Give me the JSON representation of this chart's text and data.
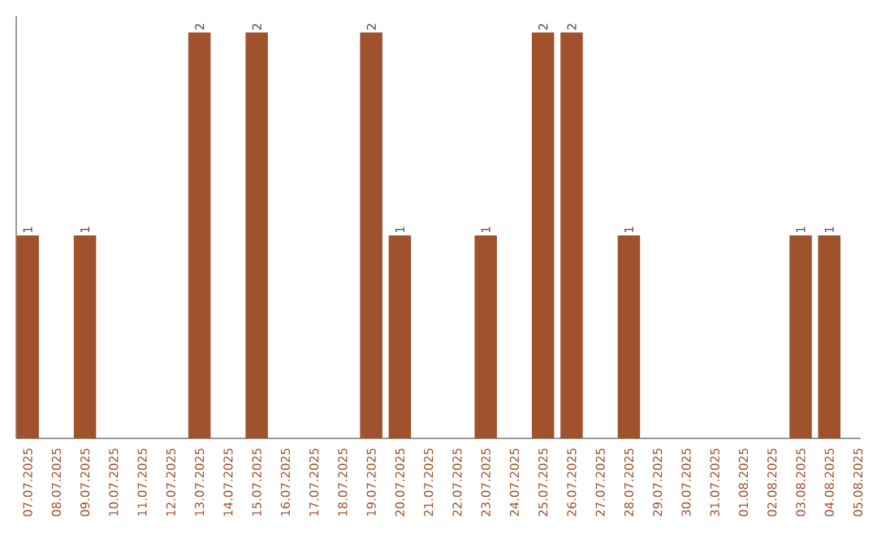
{
  "chart_data": {
    "type": "bar",
    "categories": [
      "07.07.2025",
      "08.07.2025",
      "09.07.2025",
      "10.07.2025",
      "11.07.2025",
      "12.07.2025",
      "13.07.2025",
      "14.07.2025",
      "15.07.2025",
      "16.07.2025",
      "17.07.2025",
      "18.07.2025",
      "19.07.2025",
      "20.07.2025",
      "21.07.2025",
      "22.07.2025",
      "23.07.2025",
      "24.07.2025",
      "25.07.2025",
      "26.07.2025",
      "27.07.2025",
      "28.07.2025",
      "29.07.2025",
      "30.07.2025",
      "31.07.2025",
      "01.08.2025",
      "02.08.2025",
      "03.08.2025",
      "04.08.2025",
      "05.08.2025"
    ],
    "values": [
      1,
      0,
      1,
      0,
      0,
      0,
      2,
      0,
      2,
      0,
      0,
      0,
      2,
      1,
      0,
      0,
      1,
      0,
      2,
      2,
      0,
      1,
      0,
      0,
      0,
      0,
      0,
      1,
      1,
      0
    ],
    "value_labels": [
      "1",
      null,
      "1",
      null,
      null,
      null,
      "2",
      null,
      "2",
      null,
      null,
      null,
      "2",
      "1",
      null,
      null,
      "1",
      null,
      "2",
      "2",
      null,
      "1",
      null,
      null,
      null,
      null,
      null,
      "1",
      "1",
      null
    ],
    "color": "#a0522d",
    "tick_labels": "x"
  }
}
